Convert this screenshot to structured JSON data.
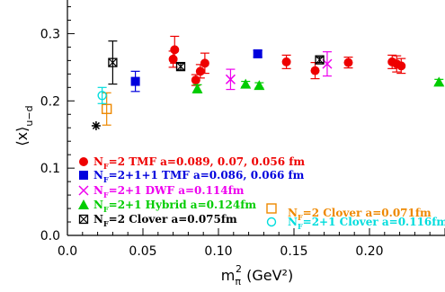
{
  "chart_data": {
    "type": "scatter",
    "xlabel": {
      "main": "m",
      "sub": "π",
      "sup": "2",
      "unit": "(GeV²)"
    },
    "ylabel": {
      "main": "⟨x⟩",
      "sub": "u−d"
    },
    "xlim": [
      0,
      0.25
    ],
    "ylim": [
      0,
      0.35
    ],
    "xticks": [
      {
        "v": 0.0,
        "label": "0.0"
      },
      {
        "v": 0.05,
        "label": "0.05"
      },
      {
        "v": 0.1,
        "label": "0.10"
      },
      {
        "v": 0.15,
        "label": "0.15"
      },
      {
        "v": 0.2,
        "label": "0.20"
      }
    ],
    "yticks": [
      {
        "v": 0.0,
        "label": "0.0"
      },
      {
        "v": 0.1,
        "label": "0.1"
      },
      {
        "v": 0.2,
        "label": "0.2"
      },
      {
        "v": 0.3,
        "label": "0.3"
      }
    ],
    "series": [
      {
        "name": "N_F=2 TMF a=0.089, 0.07, 0.056 fm",
        "legend": {
          "pre": "N",
          "sub": "F",
          "post": "=2 TMF  a=0.089, 0.07, 0.056 fm"
        },
        "marker": "circle-filled",
        "color": "#ee0000",
        "points": [
          {
            "x": 0.07,
            "y": 0.262,
            "err": 0.012
          },
          {
            "x": 0.071,
            "y": 0.276,
            "err": 0.02
          },
          {
            "x": 0.085,
            "y": 0.231,
            "err": 0.008
          },
          {
            "x": 0.088,
            "y": 0.244,
            "err": 0.01
          },
          {
            "x": 0.091,
            "y": 0.256,
            "err": 0.015
          },
          {
            "x": 0.145,
            "y": 0.258,
            "err": 0.01
          },
          {
            "x": 0.164,
            "y": 0.245,
            "err": 0.012
          },
          {
            "x": 0.186,
            "y": 0.257,
            "err": 0.008
          },
          {
            "x": 0.215,
            "y": 0.258,
            "err": 0.01
          },
          {
            "x": 0.218,
            "y": 0.255,
            "err": 0.012
          },
          {
            "x": 0.221,
            "y": 0.252,
            "err": 0.011
          }
        ]
      },
      {
        "name": "N_F=2+1+1 TMF a=0.086, 0.066 fm",
        "legend": {
          "pre": "N",
          "sub": "F",
          "post": "=2+1+1 TMF  a=0.086, 0.066 fm"
        },
        "marker": "square-filled",
        "color": "#0000dd",
        "points": [
          {
            "x": 0.045,
            "y": 0.229,
            "err": 0.015
          },
          {
            "x": 0.126,
            "y": 0.27,
            "err": 0.005
          }
        ]
      },
      {
        "name": "N_F=2+1 DWF a=0.114fm",
        "legend": {
          "pre": "N",
          "sub": "F",
          "post": "=2+1 DWF  a=0.114fm"
        },
        "marker": "x",
        "color": "#ee00ee",
        "points": [
          {
            "x": 0.108,
            "y": 0.232,
            "err": 0.015
          },
          {
            "x": 0.172,
            "y": 0.255,
            "err": 0.018
          }
        ]
      },
      {
        "name": "N_F=2+1 Hybrid a=0.124fm",
        "legend": {
          "pre": "N",
          "sub": "F",
          "post": "=2+1 Hybrid  a=0.124fm"
        },
        "marker": "triangle-filled",
        "color": "#00cc00",
        "points": [
          {
            "x": 0.086,
            "y": 0.218,
            "err": 0.006
          },
          {
            "x": 0.118,
            "y": 0.225,
            "err": 0.004
          },
          {
            "x": 0.127,
            "y": 0.223,
            "err": 0.004
          },
          {
            "x": 0.246,
            "y": 0.228,
            "err": 0.004
          }
        ]
      },
      {
        "name": "N_F=2 Clover a=0.075fm",
        "legend": {
          "pre": "N",
          "sub": "F",
          "post": "=2 Clover  a=0.075fm"
        },
        "marker": "square-x",
        "color": "#000000",
        "points": [
          {
            "x": 0.03,
            "y": 0.257,
            "err": 0.032
          },
          {
            "x": 0.075,
            "y": 0.251,
            "err": 0.005
          },
          {
            "x": 0.167,
            "y": 0.261,
            "err": 0.004
          }
        ]
      },
      {
        "name": "N_F=2 Clover a=0.071fm",
        "legend": {
          "pre": "N",
          "sub": "F",
          "post": "=2 Clover  a=0.071fm"
        },
        "marker": "square-open",
        "color": "#ee8800",
        "points": [
          {
            "x": 0.026,
            "y": 0.188,
            "err": 0.024
          }
        ]
      },
      {
        "name": "N_F=2+1 Clover a=0.116fm",
        "legend": {
          "pre": "N",
          "sub": "F",
          "post": "=2+1 Clover  a=0.116fm"
        },
        "marker": "circle-open",
        "color": "#00dddd",
        "points": [
          {
            "x": 0.023,
            "y": 0.208,
            "err": 0.012
          }
        ]
      },
      {
        "name": "",
        "marker": "star",
        "color": "#000000",
        "points": [
          {
            "x": 0.019,
            "y": 0.163,
            "err": 0
          }
        ]
      }
    ]
  }
}
